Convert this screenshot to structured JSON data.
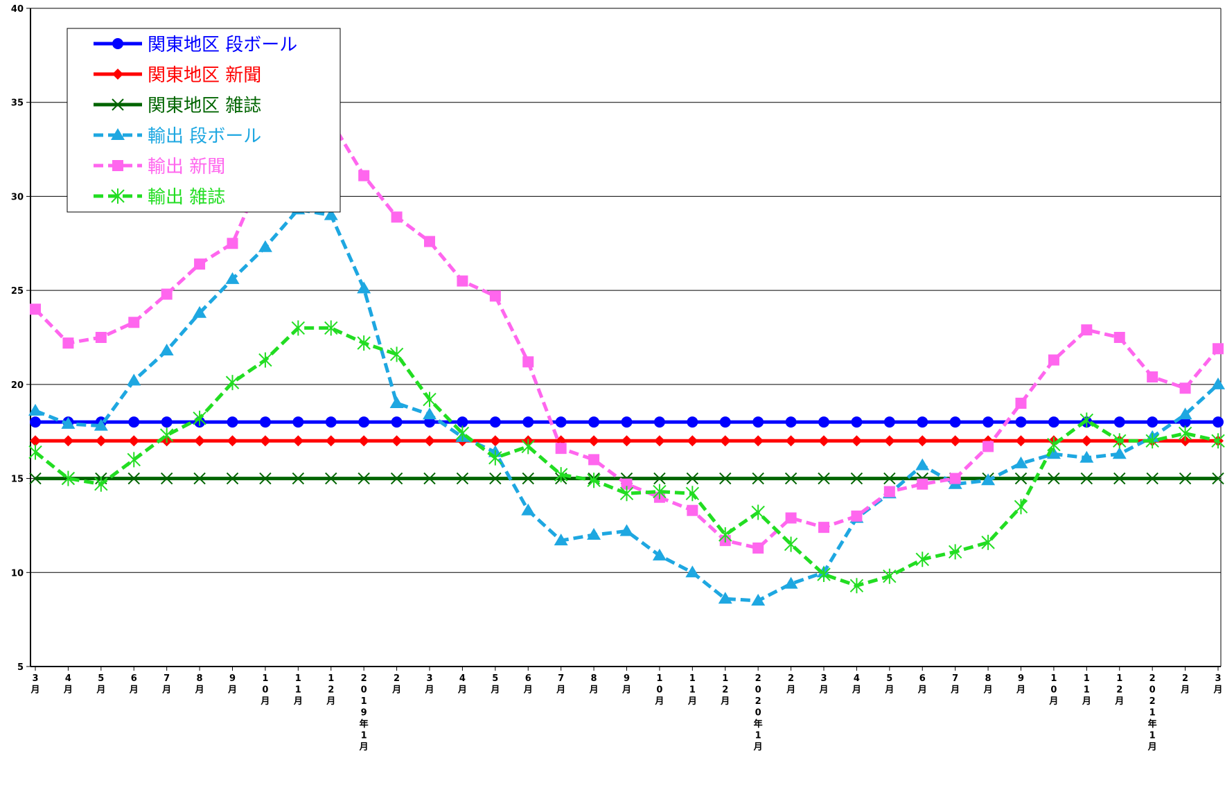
{
  "chart_data": {
    "type": "line",
    "title": "",
    "xlabel": "",
    "ylabel": "",
    "ylim": [
      5,
      40
    ],
    "yticks": [
      5,
      10,
      15,
      20,
      25,
      30,
      35,
      40
    ],
    "grid": "horizontal",
    "legend_position": "top-left",
    "categories": [
      "3月",
      "4月",
      "5月",
      "6月",
      "7月",
      "8月",
      "9月",
      "10月",
      "11月",
      "12月",
      "2019年1月",
      "2月",
      "3月",
      "4月",
      "5月",
      "6月",
      "7月",
      "8月",
      "9月",
      "10月",
      "11月",
      "12月",
      "2020年1月",
      "2月",
      "3月",
      "4月",
      "5月",
      "6月",
      "7月",
      "8月",
      "9月",
      "10月",
      "11月",
      "12月",
      "2021年1月",
      "2月",
      "3月"
    ],
    "series": [
      {
        "name": "関東地区 段ボール",
        "color": "#0000ff",
        "style": "solid",
        "marker": "circle",
        "values": [
          18,
          18,
          18,
          18,
          18,
          18,
          18,
          18,
          18,
          18,
          18,
          18,
          18,
          18,
          18,
          18,
          18,
          18,
          18,
          18,
          18,
          18,
          18,
          18,
          18,
          18,
          18,
          18,
          18,
          18,
          18,
          18,
          18,
          18,
          18,
          18,
          18
        ]
      },
      {
        "name": "関東地区 新聞",
        "color": "#ff0000",
        "style": "solid",
        "marker": "diamond",
        "values": [
          17,
          17,
          17,
          17,
          17,
          17,
          17,
          17,
          17,
          17,
          17,
          17,
          17,
          17,
          17,
          17,
          17,
          17,
          17,
          17,
          17,
          17,
          17,
          17,
          17,
          17,
          17,
          17,
          17,
          17,
          17,
          17,
          17,
          17,
          17,
          17,
          17
        ]
      },
      {
        "name": "関東地区 雑誌",
        "color": "#006400",
        "style": "solid",
        "marker": "x",
        "values": [
          15,
          15,
          15,
          15,
          15,
          15,
          15,
          15,
          15,
          15,
          15,
          15,
          15,
          15,
          15,
          15,
          15,
          15,
          15,
          15,
          15,
          15,
          15,
          15,
          15,
          15,
          15,
          15,
          15,
          15,
          15,
          15,
          15,
          15,
          15,
          15,
          15
        ]
      },
      {
        "name": "輸出 段ボール",
        "color": "#1ea7e1",
        "style": "dashed",
        "marker": "triangle",
        "values": [
          18.6,
          17.9,
          17.8,
          20.2,
          21.8,
          23.8,
          25.6,
          27.3,
          29.3,
          29.0,
          25.1,
          19.0,
          18.4,
          17.2,
          16.4,
          13.3,
          11.7,
          12.0,
          12.2,
          10.9,
          10.0,
          8.6,
          8.5,
          9.4,
          10.0,
          12.9,
          14.2,
          15.7,
          14.7,
          14.9,
          15.8,
          16.3,
          16.1,
          16.3,
          17.2,
          18.4,
          20.0
        ]
      },
      {
        "name": "輸出 新聞",
        "color": "#ff66ee",
        "style": "dashed",
        "marker": "square",
        "values": [
          24.0,
          22.2,
          22.5,
          23.3,
          24.8,
          26.4,
          27.5,
          31.5,
          33.5,
          34.0,
          31.1,
          28.9,
          27.6,
          25.5,
          24.7,
          21.2,
          16.6,
          16.0,
          14.7,
          14.0,
          13.3,
          11.7,
          11.3,
          12.9,
          12.4,
          13.0,
          14.3,
          14.7,
          15.0,
          16.7,
          19.0,
          21.3,
          22.9,
          22.5,
          20.4,
          19.8,
          21.9
        ]
      },
      {
        "name": "輸出 雑誌",
        "color": "#22dd22",
        "style": "dashed",
        "marker": "asterisk",
        "values": [
          16.4,
          15.0,
          14.7,
          16.0,
          17.3,
          18.2,
          20.1,
          21.3,
          23.0,
          23.0,
          22.2,
          21.6,
          19.2,
          17.4,
          16.1,
          16.7,
          15.2,
          14.9,
          14.2,
          14.3,
          14.2,
          12.0,
          13.2,
          11.5,
          9.9,
          9.3,
          9.8,
          10.7,
          11.1,
          11.6,
          13.5,
          16.8,
          18.1,
          17.0,
          17.0,
          17.4,
          17.0
        ]
      }
    ]
  }
}
